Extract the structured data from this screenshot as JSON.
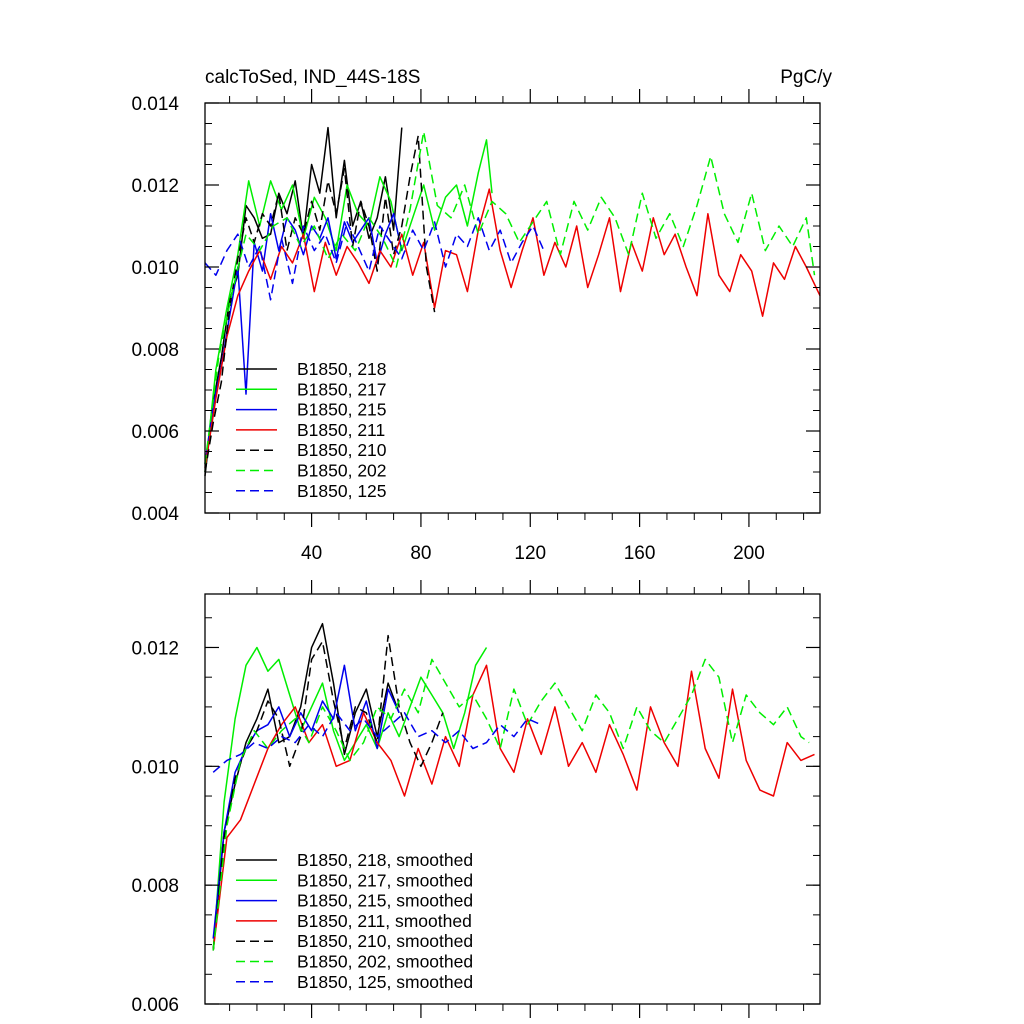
{
  "chart_data": [
    {
      "type": "line",
      "title": "calcToSed, IND_44S-18S",
      "units": "PgC/y",
      "xlabel": "",
      "ylabel": "",
      "xlim": [
        1,
        226
      ],
      "ylim": [
        0.004,
        0.014
      ],
      "yticks": [
        "0.004",
        "0.006",
        "0.008",
        "0.010",
        "0.012",
        "0.014"
      ],
      "xticks": [
        "40",
        "80",
        "120",
        "160",
        "200"
      ],
      "legend_position": "bottom-left",
      "series": [
        {
          "name": "B1850, 218",
          "color": "#000000",
          "dash": "solid",
          "length": 73,
          "x": [
            1,
            4,
            7,
            10,
            13,
            16,
            19,
            22,
            25,
            28,
            31,
            34,
            37,
            40,
            43,
            46,
            49,
            52,
            55,
            58,
            61,
            64,
            67,
            70,
            73
          ],
          "y": [
            0.0049,
            0.0067,
            0.0078,
            0.0092,
            0.0098,
            0.0115,
            0.0112,
            0.0107,
            0.0108,
            0.0118,
            0.0113,
            0.0121,
            0.0107,
            0.0125,
            0.0118,
            0.0134,
            0.0112,
            0.0126,
            0.011,
            0.0116,
            0.0107,
            0.0112,
            0.0122,
            0.0109,
            0.0134
          ]
        },
        {
          "name": "B1850, 217",
          "color": "#00ee00",
          "dash": "solid",
          "length": 106,
          "x": [
            1,
            5,
            9,
            13,
            17,
            21,
            25,
            29,
            33,
            37,
            41,
            45,
            49,
            53,
            57,
            61,
            65,
            69,
            73,
            77,
            81,
            85,
            89,
            93,
            97,
            101,
            104,
            106
          ],
          "y": [
            0.005,
            0.0075,
            0.009,
            0.0103,
            0.0121,
            0.011,
            0.0121,
            0.0114,
            0.012,
            0.0107,
            0.0117,
            0.0112,
            0.0104,
            0.012,
            0.0113,
            0.011,
            0.0122,
            0.0116,
            0.0104,
            0.0112,
            0.012,
            0.0109,
            0.0117,
            0.012,
            0.011,
            0.0123,
            0.0131,
            0.0118
          ]
        },
        {
          "name": "B1850, 215",
          "color": "#0000ee",
          "dash": "solid",
          "length": 73,
          "x": [
            1,
            4,
            7,
            10,
            13,
            16,
            19,
            22,
            25,
            28,
            31,
            34,
            37,
            40,
            43,
            46,
            49,
            52,
            55,
            58,
            61,
            64,
            67,
            70,
            73
          ],
          "y": [
            0.0052,
            0.0066,
            0.0076,
            0.0088,
            0.01,
            0.0069,
            0.0106,
            0.0099,
            0.0113,
            0.0104,
            0.0112,
            0.0109,
            0.0103,
            0.011,
            0.0107,
            0.0112,
            0.0102,
            0.0111,
            0.0106,
            0.0109,
            0.0112,
            0.0101,
            0.0108,
            0.0113,
            0.0104
          ]
        },
        {
          "name": "B1850, 211",
          "color": "#ee0000",
          "dash": "solid",
          "length": 226,
          "x": [
            1,
            5,
            9,
            13,
            17,
            21,
            25,
            29,
            33,
            37,
            41,
            45,
            49,
            53,
            57,
            61,
            65,
            69,
            73,
            77,
            81,
            85,
            89,
            93,
            97,
            101,
            105,
            109,
            113,
            117,
            121,
            125,
            129,
            133,
            137,
            141,
            145,
            149,
            153,
            157,
            161,
            165,
            169,
            173,
            177,
            181,
            185,
            189,
            193,
            197,
            201,
            205,
            209,
            213,
            217,
            221,
            226
          ],
          "y": [
            0.0051,
            0.0068,
            0.0083,
            0.0093,
            0.0099,
            0.0104,
            0.0097,
            0.0105,
            0.0101,
            0.0108,
            0.0094,
            0.0106,
            0.0098,
            0.0105,
            0.0101,
            0.0096,
            0.0104,
            0.01,
            0.0108,
            0.0098,
            0.0106,
            0.009,
            0.0104,
            0.0103,
            0.0094,
            0.0109,
            0.0119,
            0.0104,
            0.0095,
            0.0104,
            0.0112,
            0.0098,
            0.0106,
            0.01,
            0.011,
            0.0095,
            0.0103,
            0.0112,
            0.0094,
            0.0106,
            0.0099,
            0.0112,
            0.0103,
            0.0108,
            0.01,
            0.0093,
            0.0113,
            0.0098,
            0.0094,
            0.0103,
            0.0099,
            0.0088,
            0.0101,
            0.0097,
            0.0105,
            0.01,
            0.0093
          ]
        },
        {
          "name": "B1850, 210",
          "color": "#000000",
          "dash": "dashed",
          "length": 85,
          "x": [
            1,
            4,
            7,
            10,
            13,
            16,
            19,
            22,
            25,
            28,
            31,
            34,
            37,
            40,
            43,
            46,
            49,
            52,
            55,
            58,
            61,
            64,
            67,
            70,
            73,
            76,
            79,
            82,
            85
          ],
          "y": [
            0.005,
            0.0062,
            0.0072,
            0.009,
            0.0102,
            0.0112,
            0.0106,
            0.0113,
            0.011,
            0.0118,
            0.0104,
            0.0112,
            0.0108,
            0.0116,
            0.0109,
            0.0121,
            0.0113,
            0.0124,
            0.0105,
            0.0116,
            0.011,
            0.0099,
            0.0117,
            0.0103,
            0.011,
            0.0122,
            0.0132,
            0.01,
            0.0089
          ]
        },
        {
          "name": "B1850, 202",
          "color": "#00ee00",
          "dash": "dashed",
          "length": 224,
          "x": [
            1,
            6,
            11,
            16,
            21,
            26,
            31,
            36,
            41,
            46,
            51,
            56,
            61,
            66,
            71,
            76,
            81,
            86,
            91,
            96,
            101,
            106,
            111,
            116,
            121,
            126,
            131,
            136,
            141,
            146,
            151,
            156,
            161,
            166,
            171,
            176,
            181,
            186,
            191,
            196,
            201,
            206,
            211,
            216,
            221,
            224
          ],
          "y": [
            0.0052,
            0.0078,
            0.0094,
            0.0108,
            0.0104,
            0.011,
            0.0112,
            0.0105,
            0.011,
            0.0102,
            0.0108,
            0.0104,
            0.0112,
            0.0107,
            0.01,
            0.0114,
            0.0133,
            0.0115,
            0.0112,
            0.012,
            0.0108,
            0.0116,
            0.0113,
            0.0106,
            0.0111,
            0.0116,
            0.0103,
            0.0116,
            0.0109,
            0.0117,
            0.0112,
            0.0103,
            0.0118,
            0.0107,
            0.0113,
            0.0105,
            0.0115,
            0.0127,
            0.0113,
            0.0106,
            0.0118,
            0.0104,
            0.011,
            0.0105,
            0.0112,
            0.0098
          ]
        },
        {
          "name": "B1850, 125",
          "color": "#0000ee",
          "dash": "dashed",
          "length": 125,
          "x": [
            1,
            5,
            9,
            13,
            17,
            21,
            25,
            29,
            33,
            37,
            41,
            45,
            49,
            53,
            57,
            61,
            65,
            69,
            73,
            77,
            81,
            85,
            89,
            93,
            97,
            101,
            105,
            109,
            113,
            117,
            121,
            125
          ],
          "y": [
            0.0101,
            0.0098,
            0.0104,
            0.0108,
            0.01,
            0.0105,
            0.0092,
            0.0107,
            0.0096,
            0.011,
            0.0104,
            0.0108,
            0.0101,
            0.0111,
            0.0105,
            0.0099,
            0.011,
            0.0106,
            0.0102,
            0.0109,
            0.0104,
            0.0111,
            0.01,
            0.0108,
            0.0105,
            0.0112,
            0.0104,
            0.0109,
            0.0101,
            0.0106,
            0.011,
            0.0104
          ]
        }
      ]
    },
    {
      "type": "line",
      "title": "",
      "xlabel": "",
      "ylabel": "",
      "xlim": [
        1,
        226
      ],
      "ylim": [
        0.006,
        0.0129
      ],
      "yticks": [
        "0.006",
        "0.008",
        "0.010",
        "0.012"
      ],
      "xticks": [],
      "legend_position": "bottom-left",
      "series": [
        {
          "name": "B1850, 218, smoothed",
          "color": "#000000",
          "dash": "solid",
          "length": 73,
          "x": [
            4,
            8,
            12,
            16,
            20,
            24,
            28,
            32,
            36,
            40,
            44,
            48,
            52,
            56,
            60,
            64,
            68,
            72
          ],
          "y": [
            0.0069,
            0.0089,
            0.0097,
            0.0104,
            0.0108,
            0.0113,
            0.0104,
            0.0105,
            0.011,
            0.012,
            0.0124,
            0.0114,
            0.0102,
            0.0109,
            0.0113,
            0.0105,
            0.0114,
            0.0109
          ]
        },
        {
          "name": "B1850, 217, smoothed",
          "color": "#00ee00",
          "dash": "solid",
          "length": 106,
          "x": [
            4,
            8,
            12,
            16,
            20,
            24,
            28,
            32,
            36,
            40,
            44,
            48,
            52,
            56,
            60,
            64,
            68,
            72,
            76,
            80,
            84,
            88,
            92,
            96,
            100,
            104
          ],
          "y": [
            0.0069,
            0.0094,
            0.0108,
            0.0117,
            0.012,
            0.0116,
            0.0118,
            0.0112,
            0.0106,
            0.011,
            0.0114,
            0.0106,
            0.0101,
            0.0104,
            0.0107,
            0.0103,
            0.0109,
            0.0105,
            0.011,
            0.0115,
            0.0112,
            0.0109,
            0.0103,
            0.0109,
            0.0117,
            0.012
          ]
        },
        {
          "name": "B1850, 215, smoothed",
          "color": "#0000ee",
          "dash": "solid",
          "length": 73,
          "x": [
            4,
            8,
            12,
            16,
            20,
            24,
            28,
            32,
            36,
            40,
            44,
            48,
            52,
            56,
            60,
            64,
            68,
            72
          ],
          "y": [
            0.0071,
            0.0089,
            0.0099,
            0.0103,
            0.0106,
            0.0107,
            0.011,
            0.0105,
            0.0109,
            0.0106,
            0.0111,
            0.0108,
            0.0117,
            0.0106,
            0.0111,
            0.0103,
            0.0113,
            0.0109
          ]
        },
        {
          "name": "B1850, 211, smoothed",
          "color": "#ee0000",
          "dash": "solid",
          "length": 226,
          "x": [
            4,
            9,
            14,
            19,
            24,
            29,
            34,
            39,
            44,
            49,
            54,
            59,
            64,
            69,
            74,
            79,
            84,
            89,
            94,
            99,
            104,
            109,
            114,
            119,
            124,
            129,
            134,
            139,
            144,
            149,
            154,
            159,
            164,
            169,
            174,
            179,
            184,
            189,
            194,
            199,
            204,
            209,
            214,
            219,
            224
          ],
          "y": [
            0.0069,
            0.0088,
            0.0091,
            0.0097,
            0.0103,
            0.0107,
            0.011,
            0.0104,
            0.0107,
            0.01,
            0.0101,
            0.0109,
            0.0104,
            0.0101,
            0.0095,
            0.0103,
            0.0097,
            0.0105,
            0.01,
            0.0112,
            0.0117,
            0.0103,
            0.0099,
            0.0108,
            0.0102,
            0.011,
            0.01,
            0.0104,
            0.0099,
            0.0107,
            0.0102,
            0.0096,
            0.011,
            0.0104,
            0.01,
            0.0116,
            0.0103,
            0.0098,
            0.0113,
            0.0101,
            0.0096,
            0.0095,
            0.0104,
            0.0101,
            0.0102
          ]
        },
        {
          "name": "B1850, 210, smoothed",
          "color": "#000000",
          "dash": "dashed",
          "length": 85,
          "x": [
            4,
            8,
            12,
            16,
            20,
            24,
            28,
            32,
            36,
            40,
            44,
            48,
            52,
            56,
            60,
            64,
            68,
            72,
            76,
            80,
            84,
            88
          ],
          "y": [
            0.0069,
            0.0088,
            0.0098,
            0.0103,
            0.0106,
            0.0111,
            0.0108,
            0.01,
            0.0105,
            0.0118,
            0.0121,
            0.0111,
            0.0103,
            0.011,
            0.0109,
            0.0104,
            0.0122,
            0.011,
            0.0104,
            0.01,
            0.0104,
            0.0109
          ]
        },
        {
          "name": "B1850, 202, smoothed",
          "color": "#00ee00",
          "dash": "dashed",
          "length": 224,
          "x": [
            4,
            9,
            14,
            19,
            24,
            29,
            34,
            39,
            44,
            49,
            54,
            59,
            64,
            69,
            74,
            79,
            84,
            89,
            94,
            99,
            104,
            109,
            114,
            119,
            124,
            129,
            134,
            139,
            144,
            149,
            154,
            159,
            164,
            169,
            174,
            179,
            184,
            189,
            194,
            199,
            204,
            209,
            214,
            219,
            222
          ],
          "y": [
            0.0069,
            0.009,
            0.0101,
            0.0106,
            0.0103,
            0.0106,
            0.0108,
            0.0104,
            0.011,
            0.0106,
            0.0101,
            0.0104,
            0.011,
            0.0108,
            0.0113,
            0.0109,
            0.0118,
            0.0114,
            0.011,
            0.0112,
            0.0108,
            0.0103,
            0.0113,
            0.0107,
            0.0111,
            0.0114,
            0.011,
            0.0106,
            0.0112,
            0.0109,
            0.0103,
            0.011,
            0.0106,
            0.0104,
            0.0108,
            0.0112,
            0.0118,
            0.0115,
            0.0104,
            0.0112,
            0.0109,
            0.0107,
            0.011,
            0.0105,
            0.0104
          ]
        },
        {
          "name": "B1850, 125, smoothed",
          "color": "#0000ee",
          "dash": "dashed",
          "length": 125,
          "x": [
            4,
            9,
            14,
            19,
            24,
            29,
            34,
            39,
            44,
            49,
            54,
            59,
            64,
            69,
            74,
            79,
            84,
            89,
            94,
            99,
            104,
            109,
            114,
            119,
            124
          ],
          "y": [
            0.0099,
            0.0101,
            0.0102,
            0.0104,
            0.0103,
            0.0105,
            0.0104,
            0.0107,
            0.0105,
            0.0109,
            0.0106,
            0.0108,
            0.0105,
            0.0107,
            0.0109,
            0.0105,
            0.0106,
            0.0104,
            0.0106,
            0.0103,
            0.0104,
            0.0107,
            0.0105,
            0.0108,
            0.0107
          ]
        }
      ]
    }
  ]
}
